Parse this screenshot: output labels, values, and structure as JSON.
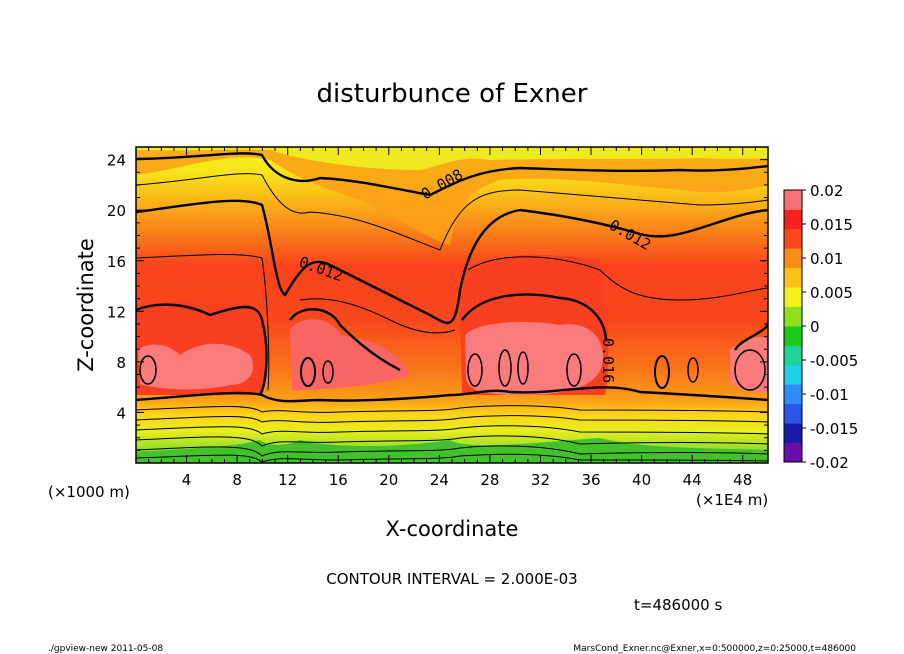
{
  "chart_data": {
    "type": "heatmap",
    "title": "disturbunce of Exner",
    "xlabel": "X-coordinate",
    "ylabel": "Z-coordinate",
    "x_unit_label": "(×1000 m)",
    "x_scale_label": "(×1E4 m)",
    "xlim": [
      0,
      50
    ],
    "ylim": [
      0,
      25
    ],
    "x_ticks": [
      "4",
      "8",
      "12",
      "16",
      "20",
      "24",
      "28",
      "32",
      "36",
      "40",
      "44",
      "48"
    ],
    "y_ticks": [
      "4",
      "8",
      "12",
      "16",
      "20",
      "24"
    ],
    "colorbar": {
      "range": [
        -0.02,
        0.02
      ],
      "labels": [
        "0.02",
        "0.015",
        "0.01",
        "0.005",
        "0",
        "-0.005",
        "-0.01",
        "-0.015",
        "-0.02"
      ]
    },
    "contour_labels": [
      "0.008",
      "0.012",
      "0.012",
      "0.016"
    ],
    "contour_interval_text": "CONTOUR INTERVAL = 2.000E-03",
    "time_text": "t=486000 s",
    "footer_left": "./gpview-new   2011-05-08",
    "footer_right": "MarsCond_Exner.nc@Exner,x=0:500000,z=0:25000,t=486000"
  }
}
